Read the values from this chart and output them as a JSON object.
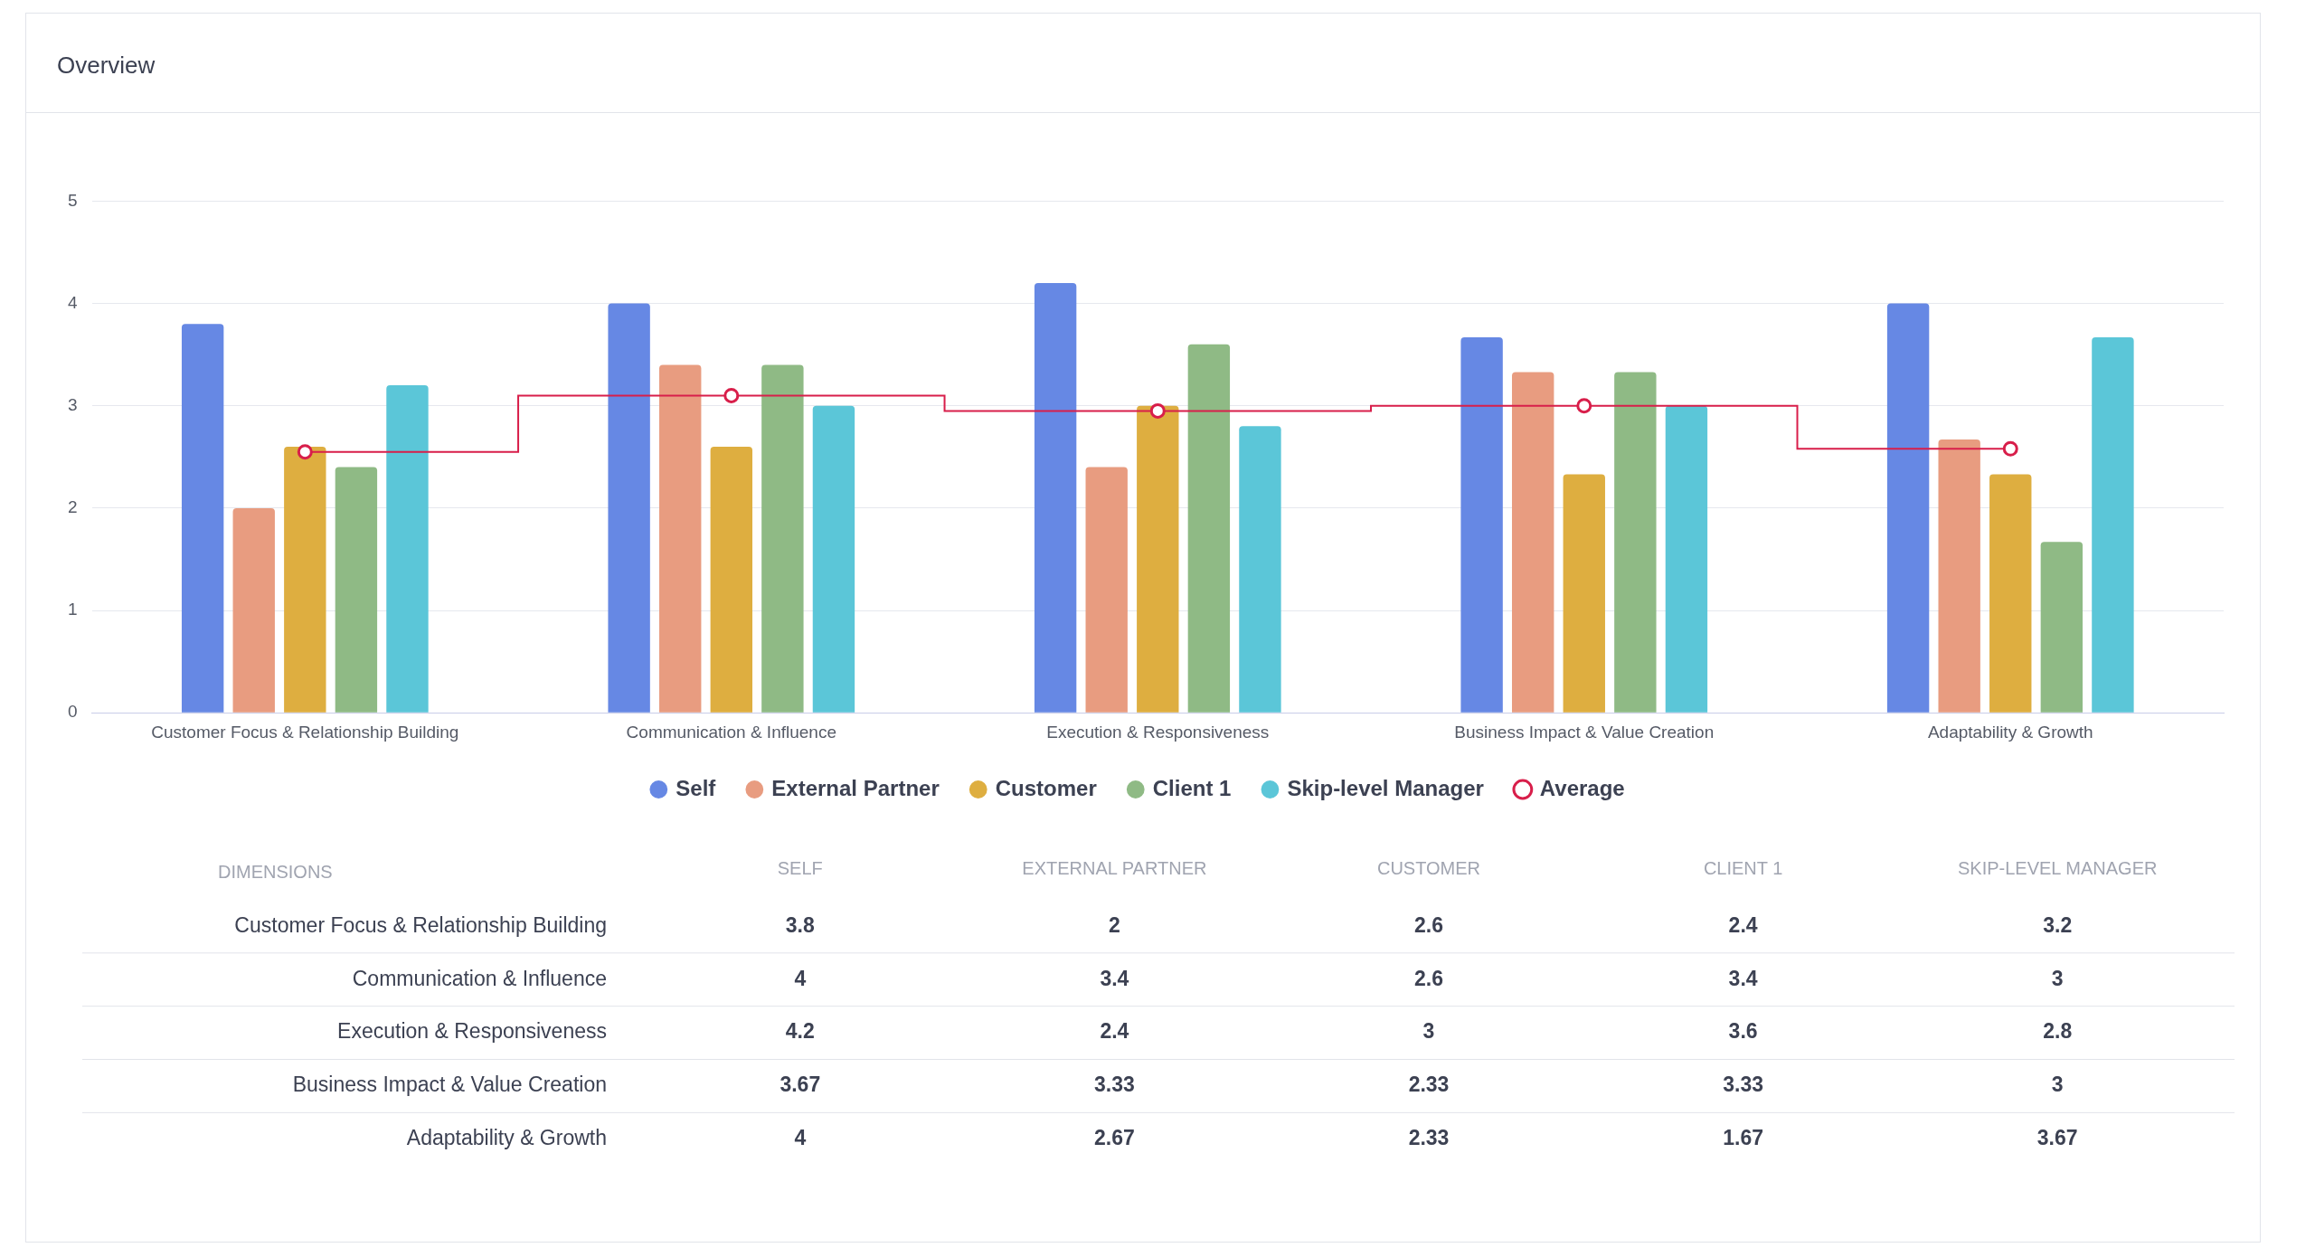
{
  "chart_data": [
    {
      "type": "bar",
      "title": "Overview",
      "categories": [
        "Customer Focus & Relationship Building",
        "Communication & Influence",
        "Execution & Responsiveness",
        "Business Impact & Value Creation",
        "Adaptability & Growth"
      ],
      "series": [
        {
          "name": "Self",
          "color": "#6688e4",
          "values": [
            3.8,
            4,
            4.2,
            3.67,
            4
          ]
        },
        {
          "name": "External Partner",
          "color": "#e89c80",
          "values": [
            2,
            3.4,
            2.4,
            3.33,
            2.67
          ]
        },
        {
          "name": "Customer",
          "color": "#deae40",
          "values": [
            2.6,
            2.6,
            3,
            2.33,
            2.33
          ]
        },
        {
          "name": "Client 1",
          "color": "#8fba85",
          "values": [
            2.4,
            3.4,
            3.6,
            3.33,
            1.67
          ]
        },
        {
          "name": "Skip-level Manager",
          "color": "#5bc6d8",
          "values": [
            3.2,
            3,
            2.8,
            3,
            3.67
          ]
        },
        {
          "name": "Average",
          "type": "step",
          "color": "#d81e4a",
          "marker": "circle",
          "values": [
            2.55,
            3.1,
            2.95,
            3,
            2.58
          ]
        }
      ],
      "ylim": [
        0,
        5
      ],
      "yticks": [
        0,
        1,
        2,
        3,
        4,
        5
      ],
      "grid": "y",
      "legend": "bottom"
    },
    {
      "type": "heatmap",
      "ylabel": "DIMENSIONS",
      "data_labels": true,
      "categories": [
        "SELF",
        "EXTERNAL PARTNER",
        "CUSTOMER",
        "CLIENT 1",
        "SKIP-LEVEL MANAGER"
      ],
      "y_categories": [
        "Customer Focus & Relationship Building",
        "Communication & Influence",
        "Execution & Responsiveness",
        "Business Impact & Value Creation",
        "Adaptability & Growth"
      ],
      "cells": [
        [
          3.8,
          2,
          2.6,
          2.4,
          3.2
        ],
        [
          4,
          3.4,
          2.6,
          3.4,
          3
        ],
        [
          4.2,
          2.4,
          3,
          3.6,
          2.8
        ],
        [
          3.67,
          3.33,
          2.33,
          3.33,
          3
        ],
        [
          4,
          2.67,
          2.33,
          1.67,
          3.67
        ]
      ]
    }
  ]
}
